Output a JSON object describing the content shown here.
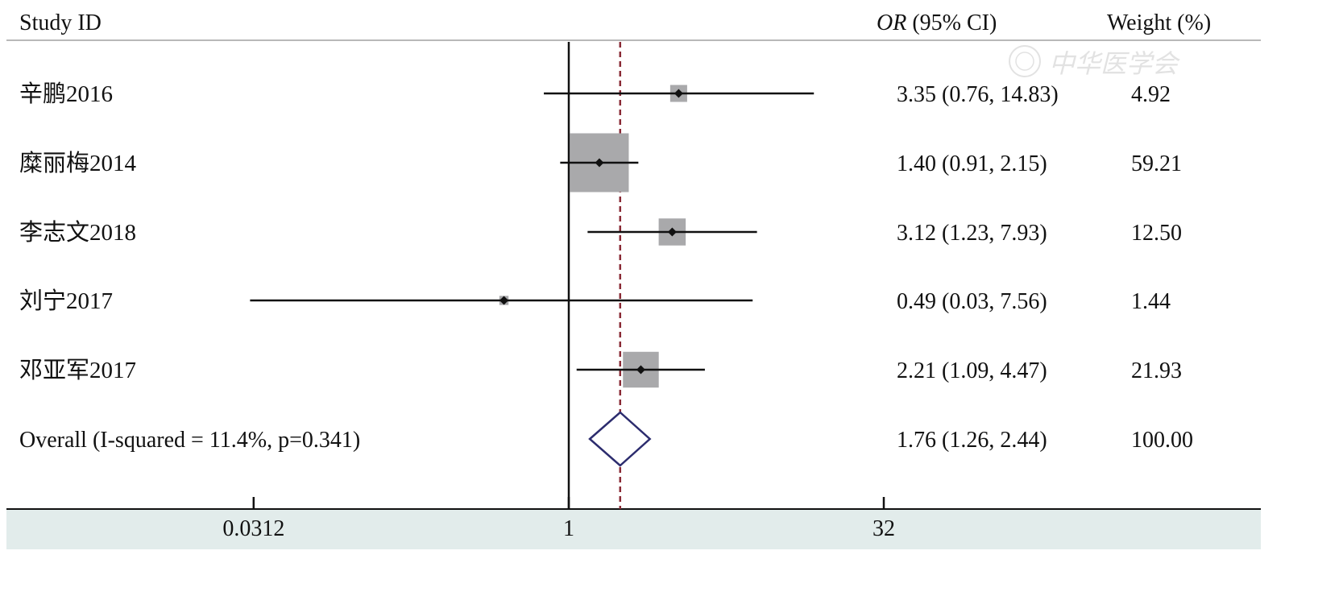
{
  "header": {
    "study_label": "Study ID",
    "or_label_italic": "OR",
    "or_label_rest": " (95% CI)",
    "weight_label": "Weight (%)"
  },
  "watermark": {
    "text": "中华医学会"
  },
  "chart_data": {
    "type": "forest",
    "x_scale": "log2",
    "xlim": [
      0.0312,
      32
    ],
    "xticks": [
      0.0312,
      1,
      32
    ],
    "xtick_labels": [
      "0.0312",
      "1",
      "32"
    ],
    "null_value": 1,
    "pooled_line_value": 1.76,
    "studies": [
      {
        "name": "辛鹏2016",
        "or": 3.35,
        "lower": 0.76,
        "upper": 14.83,
        "or_text": "3.35 (0.76, 14.83)",
        "weight": 4.92,
        "weight_text": "4.92"
      },
      {
        "name": "糜丽梅2014",
        "or": 1.4,
        "lower": 0.91,
        "upper": 2.15,
        "or_text": "1.40 (0.91, 2.15)",
        "weight": 59.21,
        "weight_text": "59.21"
      },
      {
        "name": "李志文2018",
        "or": 3.12,
        "lower": 1.23,
        "upper": 7.93,
        "or_text": "3.12 (1.23, 7.93)",
        "weight": 12.5,
        "weight_text": "12.50"
      },
      {
        "name": "刘宁2017",
        "or": 0.49,
        "lower": 0.03,
        "upper": 7.56,
        "or_text": "0.49 (0.03, 7.56)",
        "weight": 1.44,
        "weight_text": "1.44"
      },
      {
        "name": "邓亚军2017",
        "or": 2.21,
        "lower": 1.09,
        "upper": 4.47,
        "or_text": "2.21 (1.09, 4.47)",
        "weight": 21.93,
        "weight_text": "21.93"
      }
    ],
    "overall": {
      "name": "Overall (I-squared = 11.4%, p=0.341)",
      "or": 1.76,
      "lower": 1.26,
      "upper": 2.44,
      "or_text": "1.76 (1.26, 2.44)",
      "weight_text": "100.00"
    },
    "colors": {
      "box": "#a9a9ab",
      "diamond": "#2c2c6e",
      "pooled_line": "#8a2a35",
      "axis_band": "#e2eceb",
      "header_rule": "#b8b8b8"
    }
  }
}
